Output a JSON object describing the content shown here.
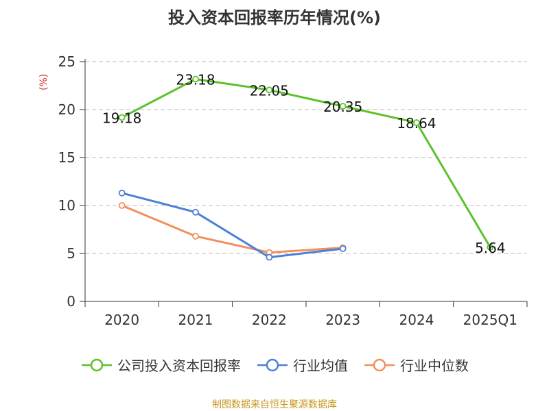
{
  "chart_data": {
    "type": "line",
    "title": "投入资本回报率历年情况(%)",
    "ylabel": "(%)",
    "categories": [
      "2020",
      "2021",
      "2022",
      "2023",
      "2024",
      "2025Q1"
    ],
    "ylim": [
      0,
      25
    ],
    "yticks": [
      0,
      5,
      10,
      15,
      20,
      25
    ],
    "grid": true,
    "legend_position": "bottom",
    "series": [
      {
        "name": "公司投入资本回报率",
        "color": "#5cc12a",
        "values": [
          19.18,
          23.18,
          22.05,
          20.35,
          18.64,
          5.64
        ],
        "labels": [
          "19.18",
          "23.18",
          "22.05",
          "20.35",
          "18.64",
          "5.64"
        ]
      },
      {
        "name": "行业均值",
        "color": "#4d7fd8",
        "values": [
          11.3,
          9.3,
          4.6,
          5.5,
          null,
          null
        ]
      },
      {
        "name": "行业中位数",
        "color": "#f28f5b",
        "values": [
          10.0,
          6.8,
          5.1,
          5.6,
          null,
          null
        ]
      }
    ]
  },
  "source": "制图数据来自恒生聚源数据库"
}
